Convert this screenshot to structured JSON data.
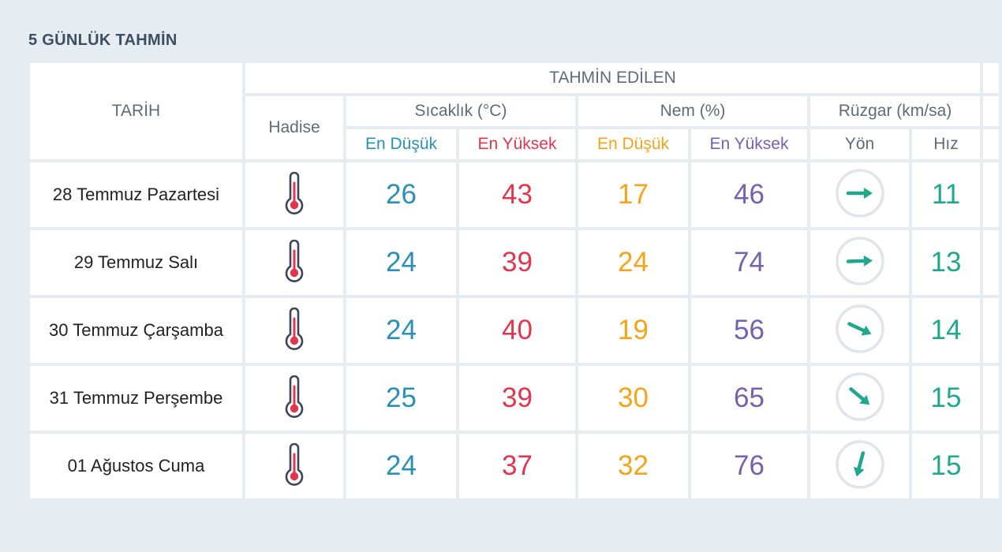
{
  "title": "5 GÜNLÜK TAHMİN",
  "headers": {
    "tarih": "TARİH",
    "tahmin_edilen": "TAHMİN EDİLEN",
    "hadise": "Hadise",
    "sicaklik": "Sıcaklık (°C)",
    "nem": "Nem (%)",
    "ruzgar": "Rüzgar (km/sa)",
    "en_dusuk_1": "En Düşük",
    "en_yuksek_1": "En Yüksek",
    "en_dusuk_2": "En Düşük",
    "en_yuksek_2": "En Yüksek",
    "yon": "Yön",
    "hiz": "Hız"
  },
  "colors": {
    "low_temp": "#2a90b6",
    "high_temp": "#e0374f",
    "low_humidity": "#f2a51a",
    "high_humidity": "#7661ad",
    "wind_speed": "#1fa88e"
  },
  "rows": [
    {
      "date": "28 Temmuz Pazartesi",
      "hadise_icon": "thermometer-icon",
      "temp_low": "26",
      "temp_high": "43",
      "hum_low": "17",
      "hum_high": "46",
      "wind_dir_icon": "wind-arrow-icon",
      "wind_dir_deg": 90,
      "wind_speed": "11"
    },
    {
      "date": "29 Temmuz Salı",
      "hadise_icon": "thermometer-icon",
      "temp_low": "24",
      "temp_high": "39",
      "hum_low": "24",
      "hum_high": "74",
      "wind_dir_icon": "wind-arrow-icon",
      "wind_dir_deg": 88,
      "wind_speed": "13"
    },
    {
      "date": "30 Temmuz Çarşamba",
      "hadise_icon": "thermometer-icon",
      "temp_low": "24",
      "temp_high": "40",
      "hum_low": "19",
      "hum_high": "56",
      "wind_dir_icon": "wind-arrow-icon",
      "wind_dir_deg": 115,
      "wind_speed": "14"
    },
    {
      "date": "31 Temmuz Perşembe",
      "hadise_icon": "thermometer-icon",
      "temp_low": "25",
      "temp_high": "39",
      "hum_low": "30",
      "hum_high": "65",
      "wind_dir_icon": "wind-arrow-icon",
      "wind_dir_deg": 130,
      "wind_speed": "15"
    },
    {
      "date": "01 Ağustos Cuma",
      "hadise_icon": "thermometer-icon",
      "temp_low": "24",
      "temp_high": "37",
      "hum_low": "32",
      "hum_high": "76",
      "wind_dir_icon": "wind-arrow-icon",
      "wind_dir_deg": 195,
      "wind_speed": "15"
    }
  ]
}
